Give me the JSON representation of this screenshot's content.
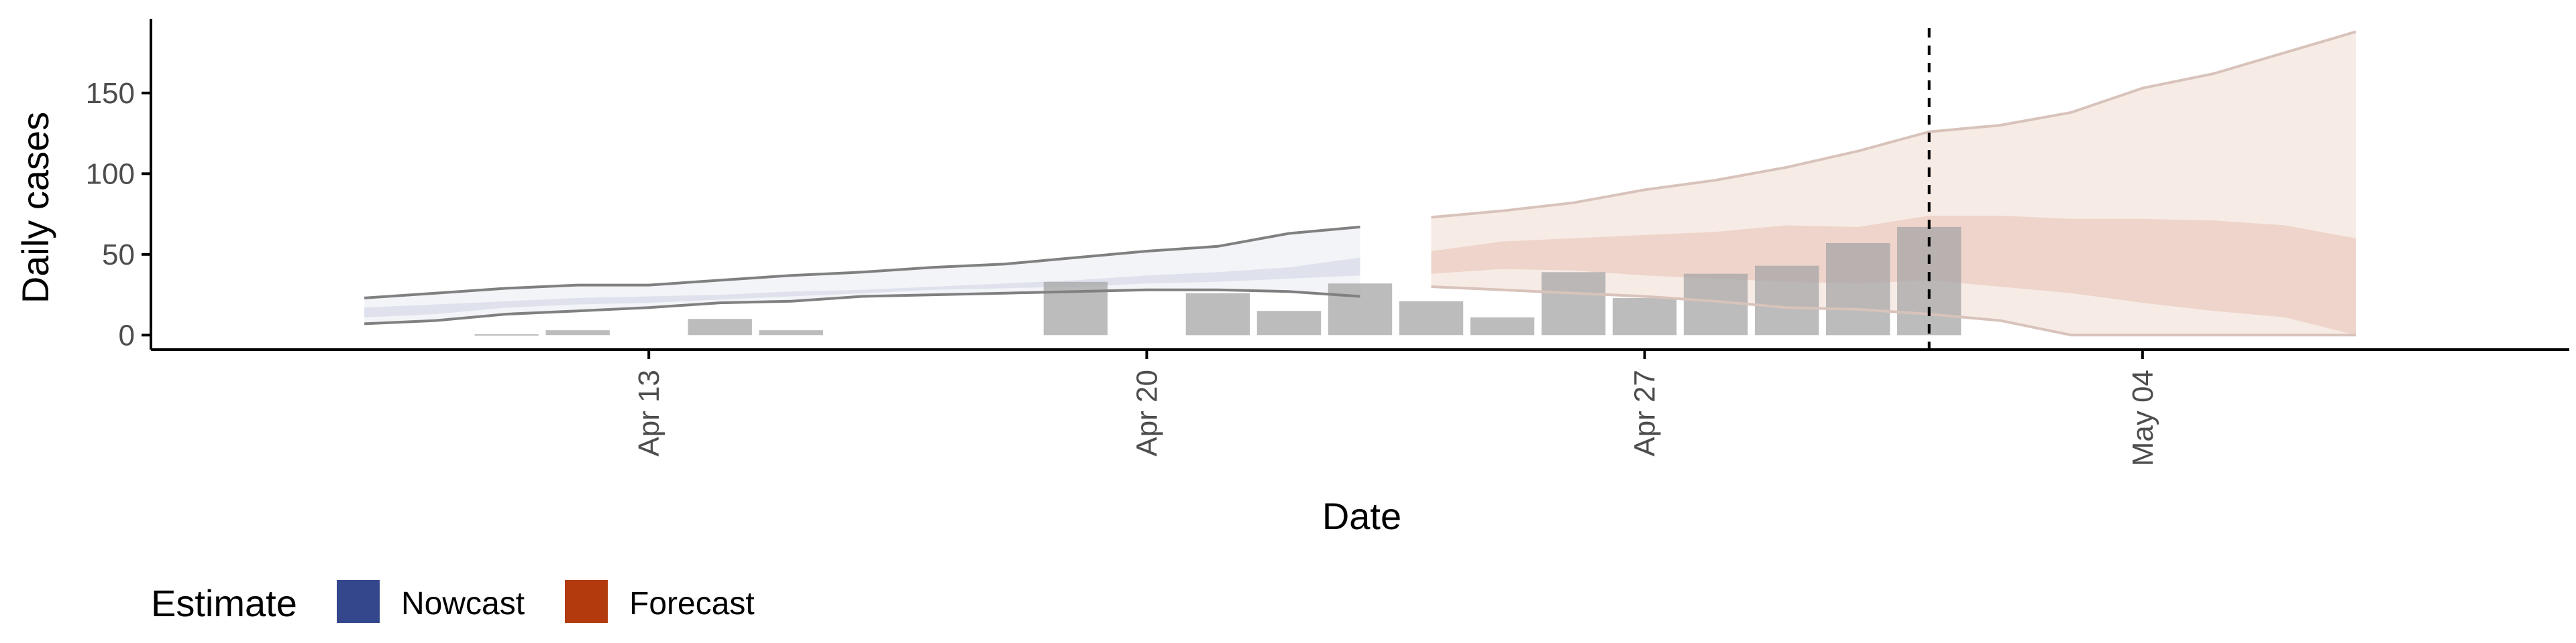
{
  "chart_data": {
    "type": "area",
    "xlabel": "Date",
    "ylabel": "Daily cases",
    "xlim": [
      "2020-04-06",
      "2020-05-10"
    ],
    "ylim": [
      -9,
      196
    ],
    "x_ticks": [
      {
        "date": "2020-04-13",
        "label": "Apr 13"
      },
      {
        "date": "2020-04-20",
        "label": "Apr 20"
      },
      {
        "date": "2020-04-27",
        "label": "Apr 27"
      },
      {
        "date": "2020-05-04",
        "label": "May 04"
      }
    ],
    "y_ticks": [
      0,
      50,
      100,
      150
    ],
    "grid": false,
    "legend_position": "bottom-left",
    "colors": {
      "nowcast": "#35478c",
      "forecast": "#b23a0c",
      "bars": "#a6a6a6",
      "axis": "#000000",
      "tick_text": "#4d4d4d"
    },
    "reference_line": {
      "date": "2020-05-01",
      "style": "dashed"
    },
    "bars": [
      {
        "date": "2020-04-11",
        "value": 0.5
      },
      {
        "date": "2020-04-12",
        "value": 3
      },
      {
        "date": "2020-04-14",
        "value": 10
      },
      {
        "date": "2020-04-15",
        "value": 3
      },
      {
        "date": "2020-04-19",
        "value": 33
      },
      {
        "date": "2020-04-21",
        "value": 26
      },
      {
        "date": "2020-04-22",
        "value": 15
      },
      {
        "date": "2020-04-23",
        "value": 32
      },
      {
        "date": "2020-04-24",
        "value": 21
      },
      {
        "date": "2020-04-25",
        "value": 11
      },
      {
        "date": "2020-04-26",
        "value": 39
      },
      {
        "date": "2020-04-27",
        "value": 23
      },
      {
        "date": "2020-04-28",
        "value": 38
      },
      {
        "date": "2020-04-29",
        "value": 43
      },
      {
        "date": "2020-04-30",
        "value": 57
      },
      {
        "date": "2020-05-01",
        "value": 67
      }
    ],
    "series": [
      {
        "name": "Nowcast",
        "dates": [
          "2020-04-09",
          "2020-04-10",
          "2020-04-11",
          "2020-04-12",
          "2020-04-13",
          "2020-04-14",
          "2020-04-15",
          "2020-04-16",
          "2020-04-17",
          "2020-04-18",
          "2020-04-19",
          "2020-04-20",
          "2020-04-21",
          "2020-04-22",
          "2020-04-23"
        ],
        "lower_90": [
          7,
          9,
          13,
          15,
          17,
          20,
          21,
          24,
          25,
          26,
          27,
          28,
          28,
          27,
          24
        ],
        "lower_50": [
          11,
          13,
          17,
          19,
          20,
          22,
          24,
          26,
          28,
          29,
          30,
          32,
          33,
          35,
          37
        ],
        "upper_50": [
          17,
          19,
          21,
          23,
          24,
          25,
          27,
          28,
          30,
          32,
          34,
          37,
          39,
          42,
          48
        ],
        "upper_90": [
          23,
          26,
          29,
          31,
          31,
          34,
          37,
          39,
          42,
          44,
          48,
          52,
          55,
          63,
          67
        ]
      },
      {
        "name": "Forecast",
        "dates": [
          "2020-04-24",
          "2020-04-25",
          "2020-04-26",
          "2020-04-27",
          "2020-04-28",
          "2020-04-29",
          "2020-04-30",
          "2020-05-01",
          "2020-05-02",
          "2020-05-03",
          "2020-05-04",
          "2020-05-05",
          "2020-05-06",
          "2020-05-07"
        ],
        "lower_90": [
          30,
          28,
          26,
          24,
          21,
          17,
          16,
          13,
          9,
          0,
          0,
          0,
          0,
          0
        ],
        "lower_50": [
          38,
          41,
          40,
          37,
          35,
          33,
          32,
          34,
          30,
          26,
          20,
          15,
          11,
          0
        ],
        "upper_50": [
          52,
          58,
          60,
          62,
          64,
          68,
          67,
          74,
          74,
          72,
          72,
          71,
          68,
          60
        ],
        "upper_90": [
          73,
          77,
          82,
          90,
          96,
          104,
          114,
          126,
          130,
          138,
          153,
          162,
          175,
          188
        ]
      }
    ]
  },
  "legend": {
    "title": "Estimate",
    "items": [
      {
        "label": "Nowcast",
        "color": "#35478c"
      },
      {
        "label": "Forecast",
        "color": "#b23a0c"
      }
    ]
  }
}
